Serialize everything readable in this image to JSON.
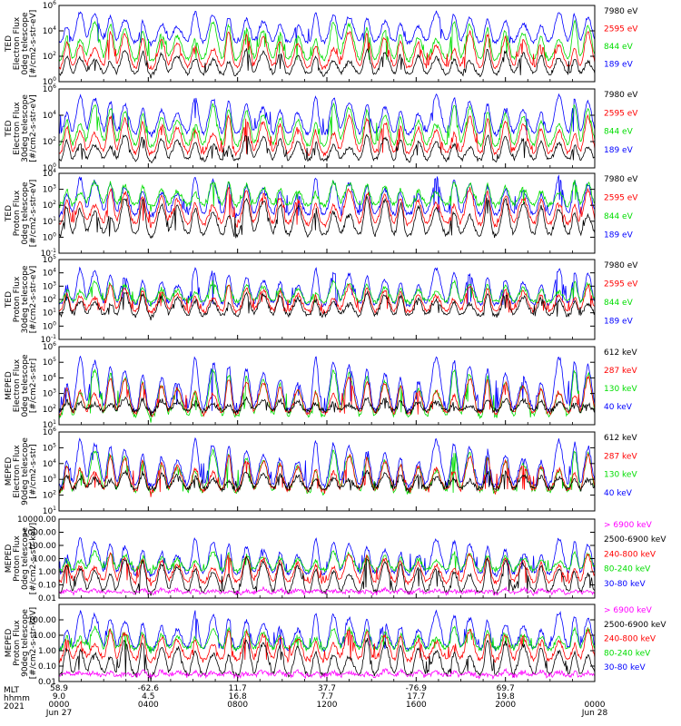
{
  "chart_data": [
    {
      "type": "line",
      "ylabel": "TED Electron Flux 0deg telescope [#/cm2-s-str-eV]",
      "yscale": "log",
      "ylim": [
        1,
        1000000
      ],
      "yticks": [
        "10^0",
        "10^2",
        "10^4",
        "10^6"
      ],
      "series": [
        {
          "name": "7980 eV",
          "color": "#000000",
          "baseline": 3,
          "spike": 300
        },
        {
          "name": "2595 eV",
          "color": "#ff0000",
          "baseline": 10,
          "spike": 8000
        },
        {
          "name": "844 eV",
          "color": "#00dd00",
          "baseline": 40,
          "spike": 50000
        },
        {
          "name": "189 eV",
          "color": "#0000ff",
          "baseline": 1000,
          "spike": 300000
        }
      ]
    },
    {
      "type": "line",
      "ylabel": "TED Electron Flux 30deg telescope [#/cm2-s-str-eV]",
      "yscale": "log",
      "ylim": [
        1,
        1000000
      ],
      "yticks": [
        "10^0",
        "10^2",
        "10^4",
        "10^6"
      ],
      "series": [
        {
          "name": "7980 eV",
          "color": "#000000",
          "baseline": 3,
          "spike": 300
        },
        {
          "name": "2595 eV",
          "color": "#ff0000",
          "baseline": 10,
          "spike": 8000
        },
        {
          "name": "844 eV",
          "color": "#00dd00",
          "baseline": 40,
          "spike": 60000
        },
        {
          "name": "189 eV",
          "color": "#0000ff",
          "baseline": 300,
          "spike": 300000
        }
      ]
    },
    {
      "type": "line",
      "ylabel": "TED Proton Flux 0deg telescope [#/cm2-s-str-eV]",
      "yscale": "log",
      "ylim": [
        0.1,
        10000
      ],
      "yticks": [
        "10^-1",
        "10^0",
        "10^1",
        "10^2",
        "10^3",
        "10^4"
      ],
      "series": [
        {
          "name": "7980 eV",
          "color": "#000000",
          "baseline": 1,
          "spike": 300
        },
        {
          "name": "2595 eV",
          "color": "#ff0000",
          "baseline": 5,
          "spike": 1000
        },
        {
          "name": "844 eV",
          "color": "#00dd00",
          "baseline": 80,
          "spike": 3000
        },
        {
          "name": "189 eV",
          "color": "#0000ff",
          "baseline": 20,
          "spike": 5000
        }
      ]
    },
    {
      "type": "line",
      "ylabel": "TED Proton Flux 30deg telescope [#/cm2-s-str-eV]",
      "yscale": "log",
      "ylim": [
        0.1,
        100000
      ],
      "yticks": [
        "10^-1",
        "10^0",
        "10^1",
        "10^2",
        "10^3",
        "10^4",
        "10^5"
      ],
      "series": [
        {
          "name": "7980 eV",
          "color": "#000000",
          "baseline": 5,
          "spike": 300
        },
        {
          "name": "2595 eV",
          "color": "#ff0000",
          "baseline": 10,
          "spike": 1000
        },
        {
          "name": "844 eV",
          "color": "#00dd00",
          "baseline": 50,
          "spike": 2000
        },
        {
          "name": "189 eV",
          "color": "#0000ff",
          "baseline": 30,
          "spike": 20000
        }
      ]
    },
    {
      "type": "line",
      "ylabel": "MEPED Electron Flux 0deg telescope [#/cm2-s-str]",
      "yscale": "log",
      "ylim": [
        10,
        1000000
      ],
      "yticks": [
        "10^1",
        "10^2",
        "10^3",
        "10^4",
        "10^5",
        "10^6"
      ],
      "series": [
        {
          "name": "612 keV",
          "color": "#000000",
          "baseline": 60,
          "spike": 500
        },
        {
          "name": "287 keV",
          "color": "#ff0000",
          "baseline": 40,
          "spike": 10000
        },
        {
          "name": "130 keV",
          "color": "#00dd00",
          "baseline": 25,
          "spike": 30000
        },
        {
          "name": "40 keV",
          "color": "#0000ff",
          "baseline": 60,
          "spike": 200000
        }
      ]
    },
    {
      "type": "line",
      "ylabel": "MEPED Electron Flux 90deg telescope [#/cm2-s-str]",
      "yscale": "log",
      "ylim": [
        10,
        1000000
      ],
      "yticks": [
        "10^1",
        "10^2",
        "10^3",
        "10^4",
        "10^5",
        "10^6"
      ],
      "series": [
        {
          "name": "612 keV",
          "color": "#000000",
          "baseline": 200,
          "spike": 3000
        },
        {
          "name": "287 keV",
          "color": "#ff0000",
          "baseline": 150,
          "spike": 30000
        },
        {
          "name": "130 keV",
          "color": "#00dd00",
          "baseline": 120,
          "spike": 60000
        },
        {
          "name": "40 keV",
          "color": "#0000ff",
          "baseline": 300,
          "spike": 300000
        }
      ]
    },
    {
      "type": "line",
      "ylabel": "MEPED Proton Flux 0deg telescope [#/cm2-s-str-keV]",
      "yscale": "log",
      "ylim": [
        0.01,
        10000
      ],
      "yticks": [
        "0.01",
        "0.10",
        "1.00",
        "10.00",
        "100.00",
        "1000.00",
        "10000.00"
      ],
      "series": [
        {
          "name": "> 6900 keV",
          "color": "#ff00ff",
          "baseline": 0.02,
          "spike": 0.05
        },
        {
          "name": "2500-6900 keV",
          "color": "#000000",
          "baseline": 0.02,
          "spike": 10
        },
        {
          "name": "240-800 keV",
          "color": "#ff0000",
          "baseline": 0.12,
          "spike": 20
        },
        {
          "name": "80-240 keV",
          "color": "#00dd00",
          "baseline": 1.0,
          "spike": 30
        },
        {
          "name": "30-80 keV",
          "color": "#0000ff",
          "baseline": 0.5,
          "spike": 300
        }
      ]
    },
    {
      "type": "line",
      "ylabel": "MEPED Proton Flux 90deg telescope [#/cm2-s-str-keV]",
      "yscale": "log",
      "ylim": [
        0.01,
        1000
      ],
      "yticks": [
        "0.01",
        "0.10",
        "1.00",
        "10.00",
        "100.00"
      ],
      "series": [
        {
          "name": "> 6900 keV",
          "color": "#ff00ff",
          "baseline": 0.02,
          "spike": 0.05
        },
        {
          "name": "2500-6900 keV",
          "color": "#000000",
          "baseline": 0.02,
          "spike": 5
        },
        {
          "name": "240-800 keV",
          "color": "#ff0000",
          "baseline": 0.2,
          "spike": 20
        },
        {
          "name": "80-240 keV",
          "color": "#00dd00",
          "baseline": 1.0,
          "spike": 30
        },
        {
          "name": "30-80 keV",
          "color": "#0000ff",
          "baseline": 1.0,
          "spike": 300
        }
      ]
    }
  ],
  "panel_labels": [
    [
      "TED",
      "Electron Flux",
      "0deg telescope",
      "[#/cm2-s-str-eV]"
    ],
    [
      "TED",
      "Electron Flux",
      "30deg telescope",
      "[#/cm2-s-str-eV]"
    ],
    [
      "TED",
      "Proton Flux",
      "0deg telescope",
      "[#/cm2-s-str-eV]"
    ],
    [
      "TED",
      "Proton Flux",
      "30deg telescope",
      "[#/cm2-s-str-eV]"
    ],
    [
      "MEPED",
      "Electron Flux",
      "0deg telescope",
      "[#/cm2-s-str]"
    ],
    [
      "MEPED",
      "Electron Flux",
      "90deg telescope",
      "[#/cm2-s-str]"
    ],
    [
      "MEPED",
      "Proton Flux",
      "0deg telescope",
      "[#/cm2-s-str-keV]"
    ],
    [
      "MEPED",
      "Proton Flux",
      "90deg telescope",
      "[#/cm2-s-str-keV]"
    ]
  ],
  "xaxis": {
    "row_labels": [
      "MLT",
      "hhmm",
      "2021"
    ],
    "ticks": [
      {
        "lat": "58.9",
        "mlt": "9.0",
        "hhmm": "0000",
        "date": "Jun 27"
      },
      {
        "lat": "-62.6",
        "mlt": "4.5",
        "hhmm": "0400",
        "date": ""
      },
      {
        "lat": "11.7",
        "mlt": "16.8",
        "hhmm": "0800",
        "date": ""
      },
      {
        "lat": "37.7",
        "mlt": "7.7",
        "hhmm": "1200",
        "date": ""
      },
      {
        "lat": "-76.9",
        "mlt": "17.7",
        "hhmm": "1600",
        "date": ""
      },
      {
        "lat": "69.7",
        "mlt": "19.8",
        "hhmm": "2000",
        "date": ""
      },
      {
        "lat": "",
        "mlt": "",
        "hhmm": "0000",
        "date": "Jun 28"
      }
    ]
  },
  "spike_hours": [
    0.35,
    0.95,
    1.6,
    2.3,
    2.95,
    3.75,
    4.6,
    5.3,
    6.1,
    6.9,
    7.6,
    8.4,
    9.15,
    9.9,
    10.7,
    11.5,
    12.3,
    13.0,
    13.8,
    14.6,
    15.3,
    16.1,
    16.9,
    17.7,
    18.4,
    19.2,
    20.0,
    20.8,
    21.6,
    22.4,
    23.1,
    23.7
  ]
}
